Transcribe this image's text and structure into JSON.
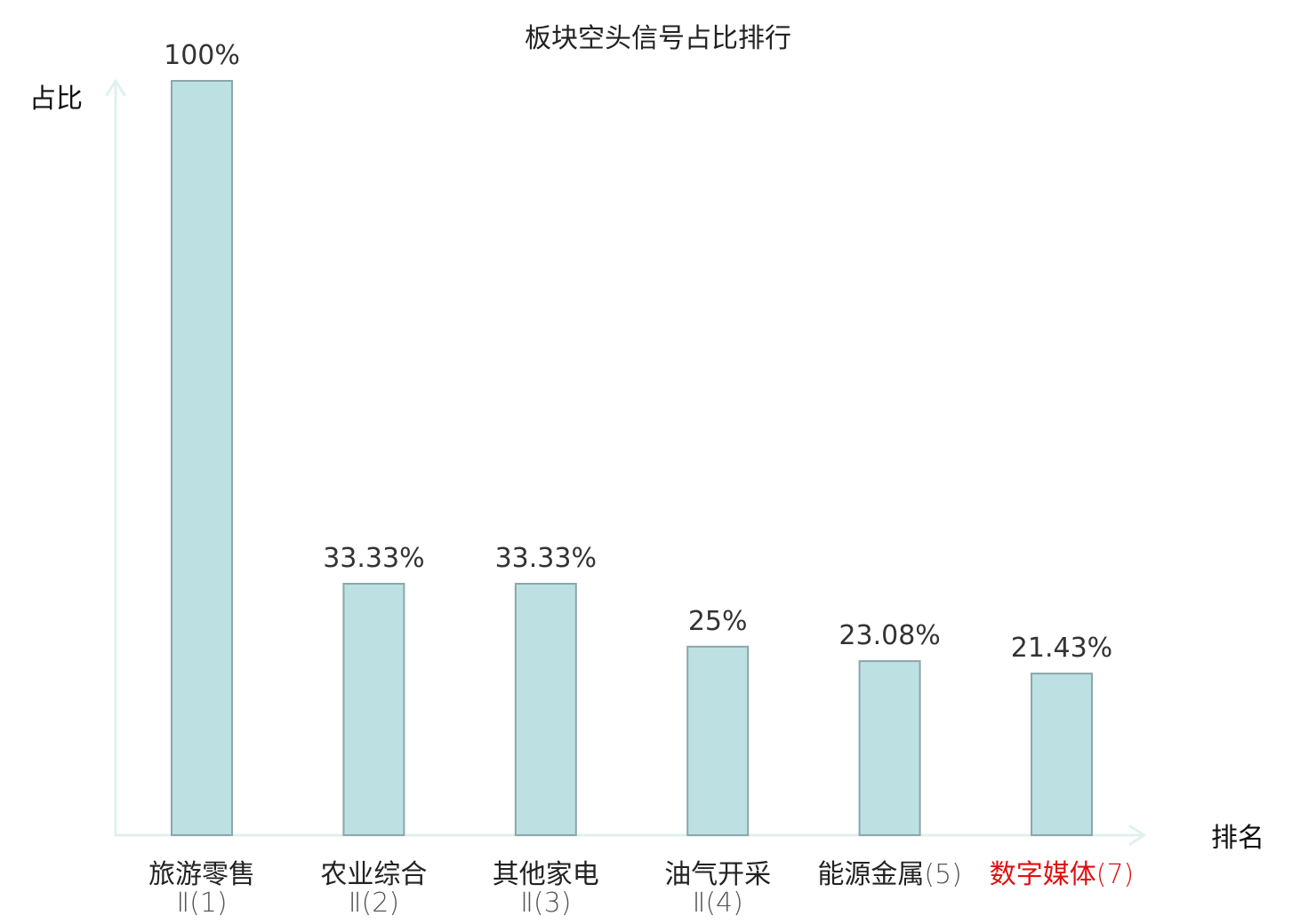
{
  "chart_data": {
    "type": "bar",
    "title": "板块空头信号占比排行",
    "ylabel": "占比",
    "xlabel": "排名",
    "ylim": [
      0,
      100
    ],
    "grid": false,
    "categories": [
      {
        "name": "旅游零售",
        "suffix": "Ⅱ(1)",
        "highlight": false
      },
      {
        "name": "农业综合",
        "suffix": "Ⅱ(2)",
        "highlight": false
      },
      {
        "name": "其他家电",
        "suffix": "Ⅱ(3)",
        "highlight": false
      },
      {
        "name": "油气开采",
        "suffix": "Ⅱ(4)",
        "highlight": false
      },
      {
        "name": "能源金属",
        "suffix": "(5)",
        "highlight": false
      },
      {
        "name": "数字媒体",
        "suffix": "(7)",
        "highlight": true
      }
    ],
    "values": [
      100,
      33.33,
      33.33,
      25,
      23.08,
      21.43
    ],
    "value_labels": [
      "100%",
      "33.33%",
      "33.33%",
      "25%",
      "23.08%",
      "21.43%"
    ],
    "colors": {
      "bar_fill": "#bde0e3",
      "bar_stroke": "#8aa7aa",
      "axis": "#dff1ee",
      "highlight_text": "#e01010",
      "text": "#222222"
    }
  }
}
